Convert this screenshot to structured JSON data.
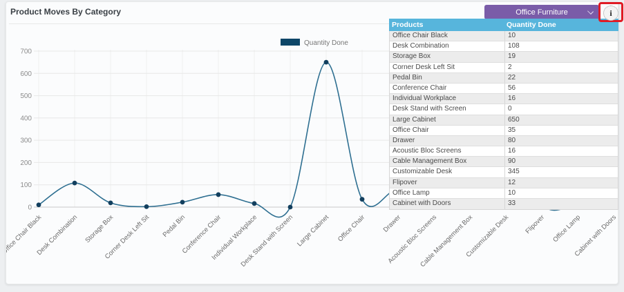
{
  "header": {
    "title": "Product Moves By Category",
    "dropdown": {
      "selected": "Office Furniture"
    }
  },
  "icons": {
    "info": "i",
    "chevron_down": "chevron-down"
  },
  "colors": {
    "dropdown_bg": "#7a5ca8",
    "table_header_bg": "#57b5dc",
    "annotation_red": "#e01b24",
    "line": "#2e6f91",
    "marker": "#123f5e",
    "legend_swatch": "#0d4668",
    "grid": "#e7e7e7",
    "axis": "#c9c9c9",
    "tick_text": "#8c8c8c",
    "xlabel_text": "#6b6b6b",
    "legend_text": "#777777"
  },
  "chart_data": {
    "type": "line",
    "title": "Product Moves By Category",
    "categories": [
      "Office Chair Black",
      "Desk Combination",
      "Storage Box",
      "Corner Desk Left Sit",
      "Pedal Bin",
      "Conference Chair",
      "Individual Workplace",
      "Desk Stand with Screen",
      "Large Cabinet",
      "Office Chair",
      "Drawer",
      "Acoustic Bloc Screens",
      "Cable Management Box",
      "Customizable Desk",
      "Flipover",
      "Office Lamp",
      "Cabinet with Doors"
    ],
    "series": [
      {
        "name": "Quantity Done",
        "values": [
          10,
          108,
          19,
          2,
          22,
          56,
          16,
          0,
          650,
          35,
          80,
          16,
          90,
          345,
          12,
          10,
          33
        ]
      }
    ],
    "xlabel": "",
    "ylabel": "",
    "ylim": [
      0,
      700
    ],
    "yticks": [
      0,
      100,
      200,
      300,
      400,
      500,
      600,
      700
    ],
    "grid": true,
    "legend_position": "top",
    "smooth": true
  },
  "table": {
    "columns": [
      "Products",
      "Quantity Done"
    ],
    "rows": [
      [
        "Office Chair Black",
        "10"
      ],
      [
        "Desk Combination",
        "108"
      ],
      [
        "Storage Box",
        "19"
      ],
      [
        "Corner Desk Left Sit",
        "2"
      ],
      [
        "Pedal Bin",
        "22"
      ],
      [
        "Conference Chair",
        "56"
      ],
      [
        "Individual Workplace",
        "16"
      ],
      [
        "Desk Stand with Screen",
        "0"
      ],
      [
        "Large Cabinet",
        "650"
      ],
      [
        "Office Chair",
        "35"
      ],
      [
        "Drawer",
        "80"
      ],
      [
        "Acoustic Bloc Screens",
        "16"
      ],
      [
        "Cable Management Box",
        "90"
      ],
      [
        "Customizable Desk",
        "345"
      ],
      [
        "Flipover",
        "12"
      ],
      [
        "Office Lamp",
        "10"
      ],
      [
        "Cabinet with Doors",
        "33"
      ]
    ]
  }
}
